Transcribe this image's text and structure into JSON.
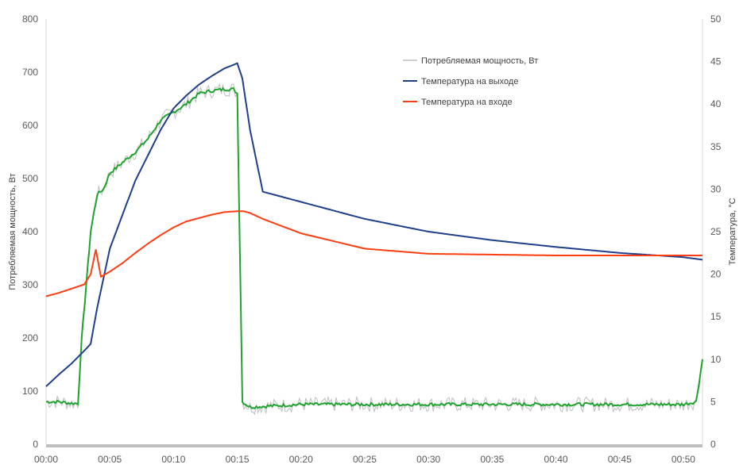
{
  "chart_data": {
    "type": "line",
    "title": "",
    "xlabel": "",
    "ylabel": "Потребляемая мощность, Вт",
    "y2label": "Температура, °C",
    "ylim": [
      0,
      800
    ],
    "y2lim": [
      0,
      50
    ],
    "xlim_minutes": [
      0,
      51.5
    ],
    "x_ticks": [
      "00:00",
      "00:05",
      "00:10",
      "00:15",
      "00:20",
      "00:25",
      "00:30",
      "00:35",
      "00:40",
      "00:45",
      "00:50"
    ],
    "y_ticks": [
      "0",
      "100",
      "200",
      "300",
      "400",
      "500",
      "600",
      "700",
      "800"
    ],
    "y2_ticks": [
      "0",
      "5",
      "10",
      "15",
      "20",
      "25",
      "30",
      "35",
      "40",
      "45",
      "50"
    ],
    "grid": {
      "horizontal": false,
      "vertical": false
    },
    "legend_position": "top-right",
    "colors": {
      "power_raw": "#bfbfbf",
      "power_smoothed": "#1fa32e",
      "temp_out": "#1f3f8c",
      "temp_in": "#ff3d10",
      "x_axis_band": "#bfbfbf",
      "axis_line": "#d9d9d9"
    },
    "series": [
      {
        "name": "Потребляемая мощность, Вт",
        "axis": "left",
        "x": [
          "00:00",
          "00:01",
          "00:02",
          "00:02.5",
          "00:02.8",
          "00:03.5",
          "00:04",
          "00:04.5",
          "00:05",
          "00:05.5",
          "00:06",
          "00:07",
          "00:08",
          "00:09",
          "00:10",
          "00:11",
          "00:12",
          "00:13",
          "00:14",
          "00:14.7",
          "00:15",
          "00:15.4",
          "00:16",
          "00:20",
          "00:25",
          "00:30",
          "00:35",
          "00:40",
          "00:45",
          "00:50",
          "00:51",
          "00:51.5"
        ],
        "values": [
          80,
          80,
          77,
          77,
          200,
          400,
          470,
          480,
          510,
          520,
          530,
          550,
          575,
          610,
          625,
          640,
          660,
          665,
          668,
          668,
          660,
          80,
          70,
          75,
          75,
          75,
          75,
          75,
          75,
          75,
          80,
          160
        ]
      },
      {
        "name": "Температура на выходе",
        "axis": "right",
        "x": [
          "00:00",
          "00:01",
          "00:02",
          "00:03",
          "00:03.5",
          "00:04",
          "00:05",
          "00:06",
          "00:07",
          "00:08",
          "00:09",
          "00:10",
          "00:11",
          "00:12",
          "00:13",
          "00:14",
          "00:15",
          "00:15.4",
          "00:16",
          "00:17",
          "00:20",
          "00:25",
          "00:30",
          "00:35",
          "00:40",
          "00:45",
          "00:50",
          "00:51.5"
        ],
        "values": [
          6.8,
          8.2,
          9.5,
          11,
          11.8,
          16,
          23,
          27,
          31,
          34,
          37,
          39.5,
          41,
          42.3,
          43.3,
          44.2,
          44.8,
          43,
          37,
          29.7,
          28.5,
          26.5,
          25,
          24,
          23.2,
          22.5,
          22,
          21.7
        ]
      },
      {
        "name": "Температура на входе",
        "axis": "right",
        "x": [
          "00:00",
          "00:01",
          "00:02",
          "00:03",
          "00:03.5",
          "00:03.9",
          "00:04.3",
          "00:05",
          "00:06",
          "00:07",
          "00:08",
          "00:09",
          "00:10",
          "00:11",
          "00:12",
          "00:13",
          "00:14",
          "00:15",
          "00:15.5",
          "00:16",
          "00:17",
          "00:20",
          "00:25",
          "00:30",
          "00:35",
          "00:40",
          "00:45",
          "00:50",
          "00:51.5"
        ],
        "values": [
          17.4,
          17.8,
          18.3,
          18.8,
          20,
          22.9,
          19.7,
          20.3,
          21.3,
          22.5,
          23.6,
          24.6,
          25.5,
          26.2,
          26.6,
          27,
          27.3,
          27.4,
          27.4,
          27.2,
          26.5,
          24.8,
          23,
          22.4,
          22.3,
          22.2,
          22.2,
          22.2,
          22.2
        ]
      }
    ]
  }
}
